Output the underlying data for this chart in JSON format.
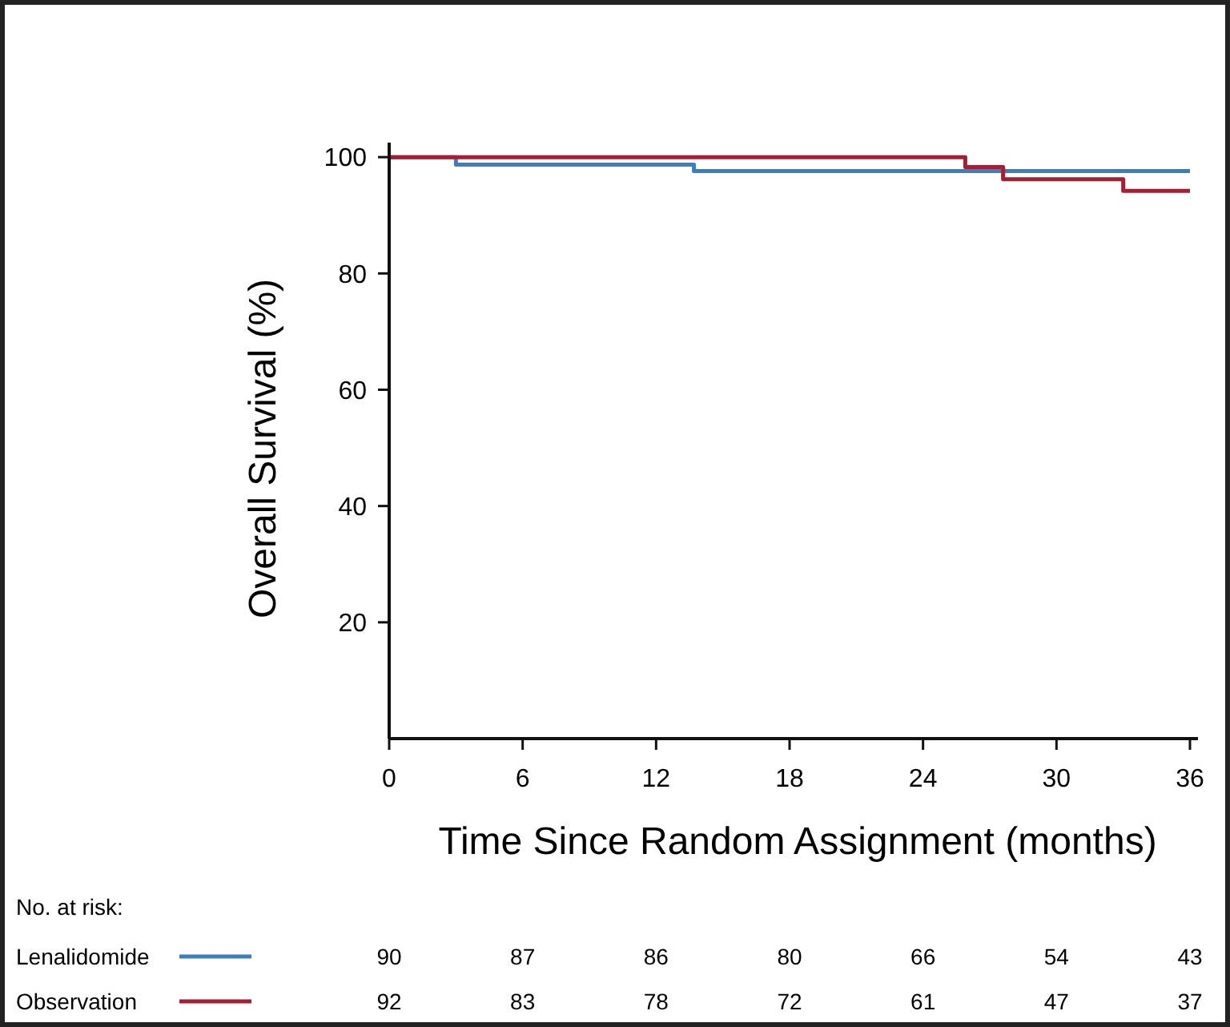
{
  "chart_data": {
    "type": "step",
    "xlabel": "Time Since Random Assignment (months)",
    "ylabel": "Overall Survival (%)",
    "xlim": [
      0,
      36
    ],
    "xticks": [
      0,
      6,
      12,
      18,
      24,
      30,
      36
    ],
    "ylim": [
      0,
      102.5
    ],
    "yticks": [
      20,
      40,
      60,
      80,
      100
    ],
    "grid": false,
    "legend": "bottom",
    "legend_title": "No. at risk:",
    "series": [
      {
        "name": "Lenalidomide",
        "color": "#3a7fc0",
        "x": [
          0,
          3.0,
          13.7,
          36
        ],
        "values": [
          100,
          98.7,
          97.6,
          97.6
        ]
      },
      {
        "name": "Observation",
        "color": "#a31f34",
        "x": [
          0,
          25.9,
          27.6,
          33.0,
          36
        ],
        "values": [
          100,
          98.3,
          96.2,
          94.2,
          94.2
        ]
      }
    ],
    "annotations": [
      "90",
      "87",
      "86",
      "80",
      "66",
      "54",
      "43",
      "92",
      "83",
      "78",
      "72",
      "61",
      "47",
      "37"
    ]
  }
}
